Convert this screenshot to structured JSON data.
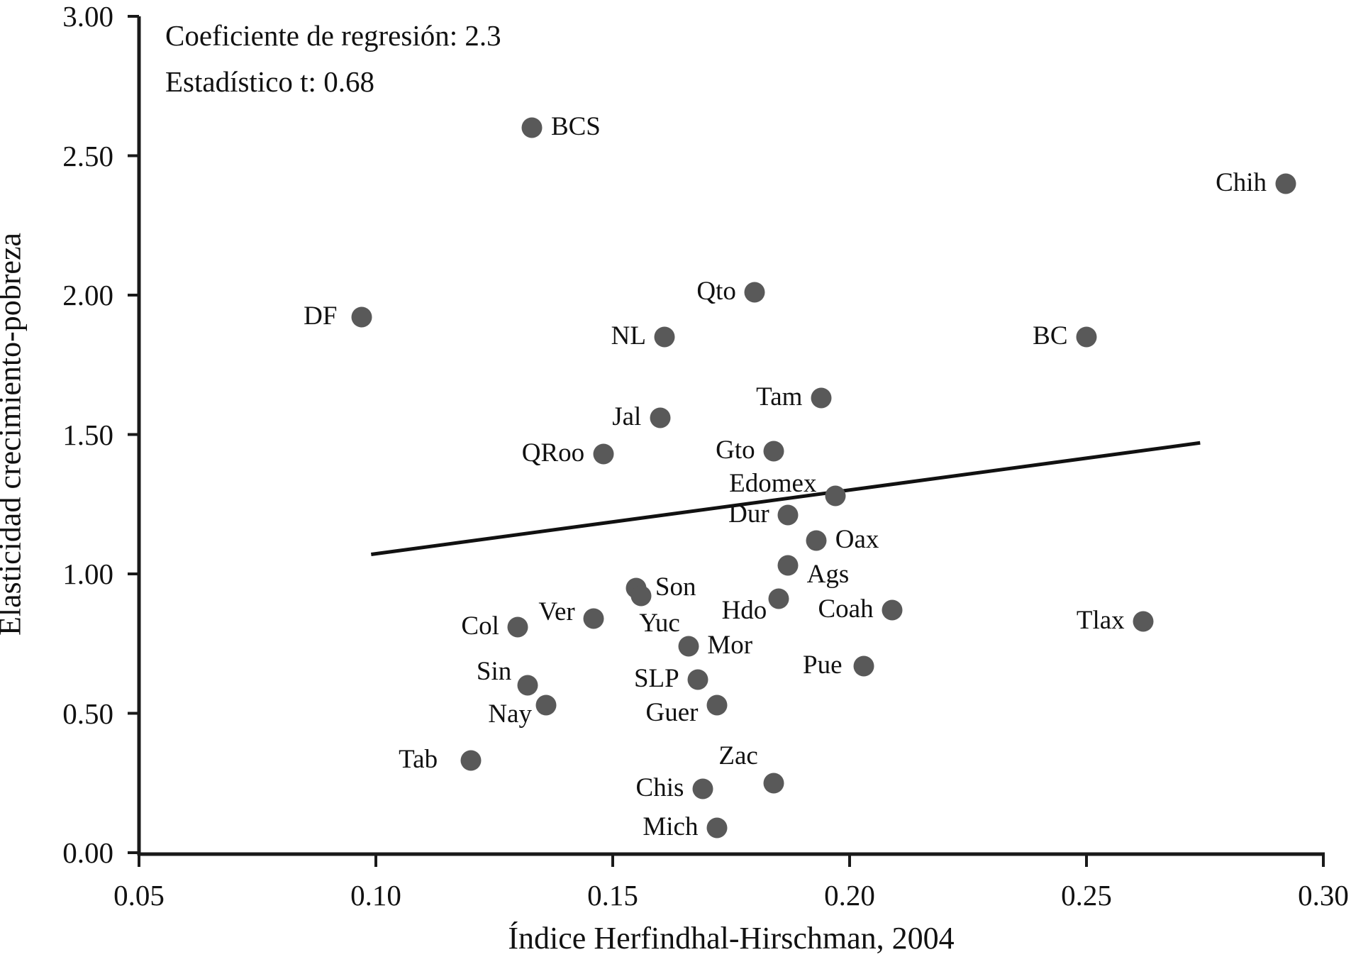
{
  "colors": {
    "dot": "#595959",
    "axis": "#1a1a1a",
    "trend": "#111111",
    "text": "#000000"
  },
  "chart_data": {
    "type": "scatter",
    "xlabel": "Índice Herfindhal-Hirschman, 2004",
    "ylabel": "Elasticidad crecimiento-pobreza",
    "xlim": [
      0.05,
      0.3
    ],
    "ylim": [
      0.0,
      3.0
    ],
    "x_ticks": [
      "0.05",
      "0.10",
      "0.15",
      "0.20",
      "0.25",
      "0.30"
    ],
    "y_ticks": [
      "0.00",
      "0.50",
      "1.00",
      "1.50",
      "2.00",
      "2.50",
      "3.00"
    ],
    "grid": "off",
    "annotations": [
      "Coeficiente de regresión: 2.3",
      "Estadístico t: 0.68"
    ],
    "trend_line": {
      "x1": 0.099,
      "y1": 1.07,
      "x2": 0.274,
      "y2": 1.47,
      "slope": 2.3,
      "t_stat": 0.68
    },
    "points": [
      {
        "label": "BCS",
        "x": 0.133,
        "y": 2.6,
        "side": "right"
      },
      {
        "label": "Chih",
        "x": 0.292,
        "y": 2.4,
        "side": "left"
      },
      {
        "label": "Qto",
        "x": 0.18,
        "y": 2.01,
        "side": "left"
      },
      {
        "label": "DF",
        "x": 0.097,
        "y": 1.92,
        "side": "left",
        "gap": 20
      },
      {
        "label": "NL",
        "x": 0.161,
        "y": 1.85,
        "side": "left"
      },
      {
        "label": "BC",
        "x": 0.25,
        "y": 1.85,
        "side": "left"
      },
      {
        "label": "Tam",
        "x": 0.194,
        "y": 1.63,
        "side": "left"
      },
      {
        "label": "Jal",
        "x": 0.16,
        "y": 1.56,
        "side": "left"
      },
      {
        "label": "QRoo",
        "x": 0.148,
        "y": 1.43,
        "side": "left"
      },
      {
        "label": "Gto",
        "x": 0.184,
        "y": 1.44,
        "side": "left"
      },
      {
        "label": "Edomex",
        "x": 0.197,
        "y": 1.28,
        "side": "left",
        "dy": -16
      },
      {
        "label": "Dur",
        "x": 0.187,
        "y": 1.21,
        "side": "left"
      },
      {
        "label": "Oax",
        "x": 0.193,
        "y": 1.12,
        "side": "right"
      },
      {
        "label": "Ags",
        "x": 0.187,
        "y": 1.03,
        "side": "right",
        "dy": 14
      },
      {
        "label": "Son",
        "x": 0.155,
        "y": 0.95,
        "side": "right"
      },
      {
        "label": "Yuc",
        "x": 0.156,
        "y": 0.92,
        "side": "below",
        "dx": 26
      },
      {
        "label": "Hdo",
        "x": 0.185,
        "y": 0.91,
        "side": "left",
        "dy": 18,
        "gap": 2
      },
      {
        "label": "Coah",
        "x": 0.209,
        "y": 0.87,
        "side": "left"
      },
      {
        "label": "Ver",
        "x": 0.146,
        "y": 0.84,
        "side": "left",
        "dy": -8
      },
      {
        "label": "Tlax",
        "x": 0.262,
        "y": 0.83,
        "side": "left"
      },
      {
        "label": "Col",
        "x": 0.13,
        "y": 0.81,
        "side": "left"
      },
      {
        "label": "Mor",
        "x": 0.166,
        "y": 0.74,
        "side": "right"
      },
      {
        "label": "Pue",
        "x": 0.203,
        "y": 0.67,
        "side": "left",
        "gap": 16
      },
      {
        "label": "SLP",
        "x": 0.168,
        "y": 0.62,
        "side": "left"
      },
      {
        "label": "Sin",
        "x": 0.132,
        "y": 0.6,
        "side": "left",
        "dy": -18,
        "gap": 8
      },
      {
        "label": "Nay",
        "x": 0.136,
        "y": 0.53,
        "side": "left",
        "dy": 14,
        "gap": 6
      },
      {
        "label": "Guer",
        "x": 0.172,
        "y": 0.53,
        "side": "left",
        "dy": 12
      },
      {
        "label": "Tab",
        "x": 0.12,
        "y": 0.33,
        "side": "left",
        "gap": 32
      },
      {
        "label": "Zac",
        "x": 0.184,
        "y": 0.25,
        "side": "above",
        "dx": -50
      },
      {
        "label": "Chis",
        "x": 0.169,
        "y": 0.23,
        "side": "left"
      },
      {
        "label": "Mich",
        "x": 0.172,
        "y": 0.09,
        "side": "left"
      }
    ]
  }
}
